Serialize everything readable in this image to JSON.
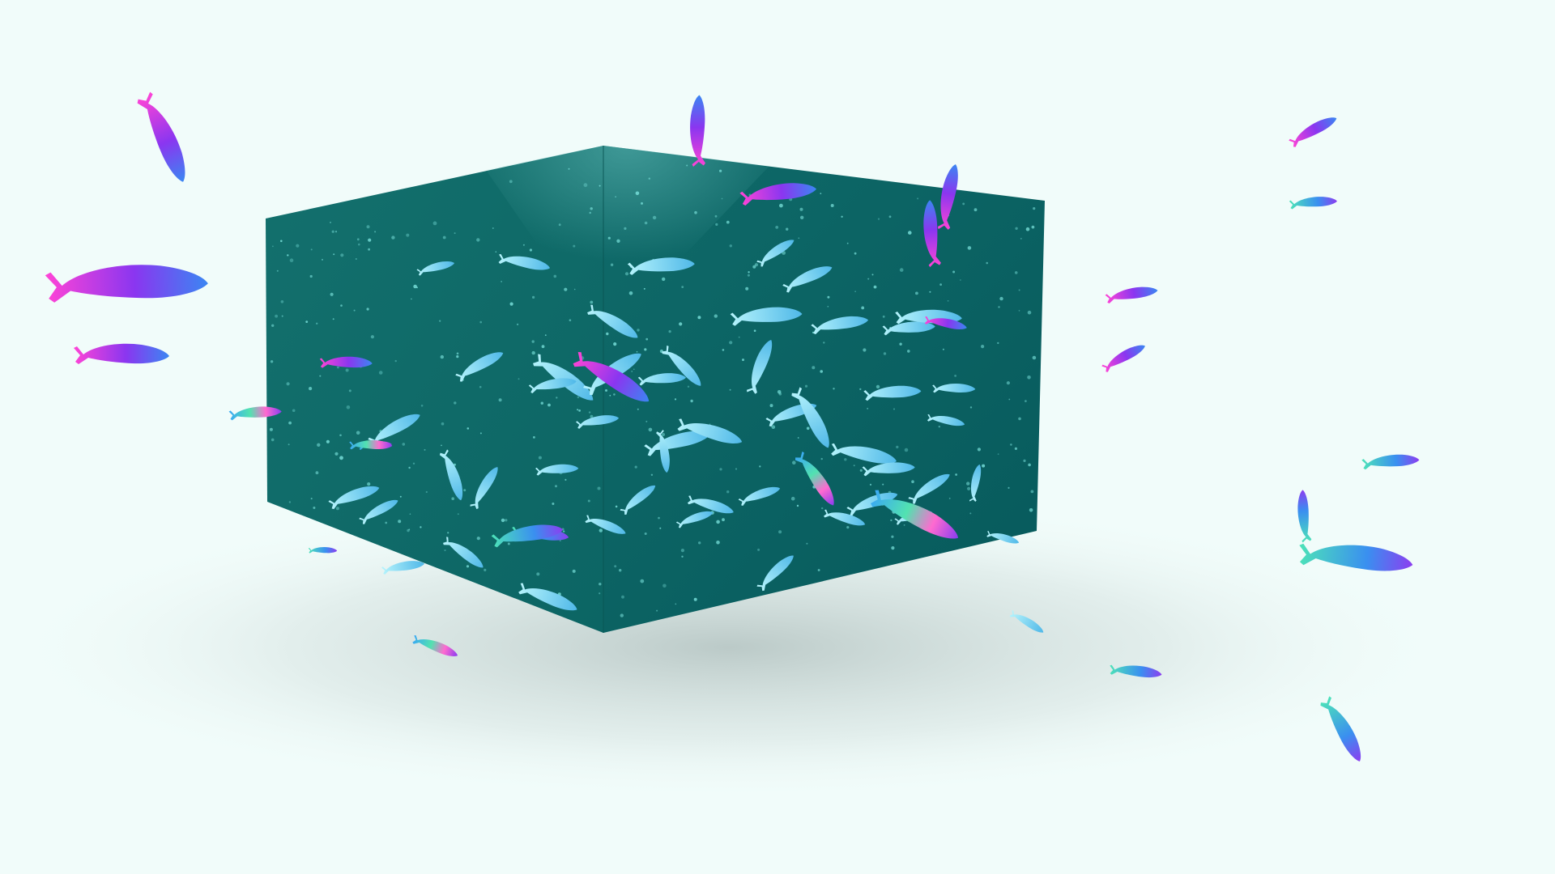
{
  "scene": {
    "subject": "whales-aquarium-cube",
    "colors": {
      "background": "#f1fcfa",
      "cube_left_face": "#0e6b69",
      "cube_right_face": "#0a5f60",
      "cube_top_edge_glow": "#4fb0ad",
      "bubble": "#7ee6e0",
      "inner_whale_light": "#aef0fb",
      "inner_whale_mid": "#5ec8ec",
      "outer_whale_pink": "#ff3fd8",
      "outer_whale_purple": "#7a2fe6",
      "outer_whale_blue": "#3f8ff0",
      "outer_whale_green": "#49e6a8",
      "shadow": "#b9c7c5"
    }
  }
}
